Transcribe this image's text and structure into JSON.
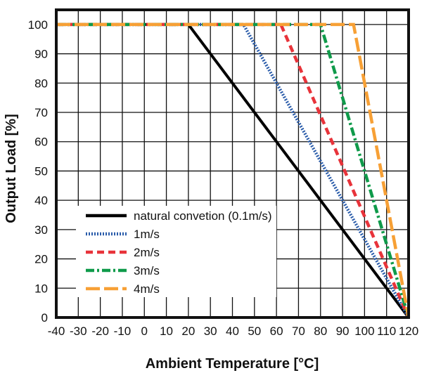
{
  "chart_data": {
    "type": "line",
    "title": "",
    "xlabel": "Ambient Temperature [°C]",
    "ylabel": "Output Load [%]",
    "xlim": [
      -40,
      120
    ],
    "ylim": [
      0,
      105
    ],
    "xticks": [
      -40,
      -30,
      -20,
      -10,
      0,
      10,
      20,
      30,
      40,
      50,
      60,
      70,
      80,
      90,
      100,
      110,
      120
    ],
    "yticks": [
      0,
      10,
      20,
      30,
      40,
      50,
      60,
      70,
      80,
      90,
      100
    ],
    "grid": true,
    "legend_position": "bottom-left",
    "series": [
      {
        "name": "natural convetion (0.1m/s)",
        "color": "#000000",
        "dash": "solid",
        "points": [
          [
            -40,
            100
          ],
          [
            20,
            100
          ],
          [
            120,
            0
          ]
        ]
      },
      {
        "name": "1m/s",
        "color": "#2a5caa",
        "dash": "dotted",
        "points": [
          [
            -40,
            100
          ],
          [
            45,
            100
          ],
          [
            120,
            0
          ]
        ]
      },
      {
        "name": "2m/s",
        "color": "#e8333a",
        "dash": "dashed",
        "points": [
          [
            -40,
            100
          ],
          [
            62,
            100
          ],
          [
            120,
            0
          ]
        ]
      },
      {
        "name": "3m/s",
        "color": "#0f9a4a",
        "dash": "dashdot",
        "points": [
          [
            -40,
            100
          ],
          [
            80,
            100
          ],
          [
            120,
            0
          ]
        ]
      },
      {
        "name": "4m/s",
        "color": "#f7a035",
        "dash": "longdash",
        "points": [
          [
            -40,
            100
          ],
          [
            95,
            100
          ],
          [
            120,
            0
          ]
        ]
      }
    ]
  }
}
